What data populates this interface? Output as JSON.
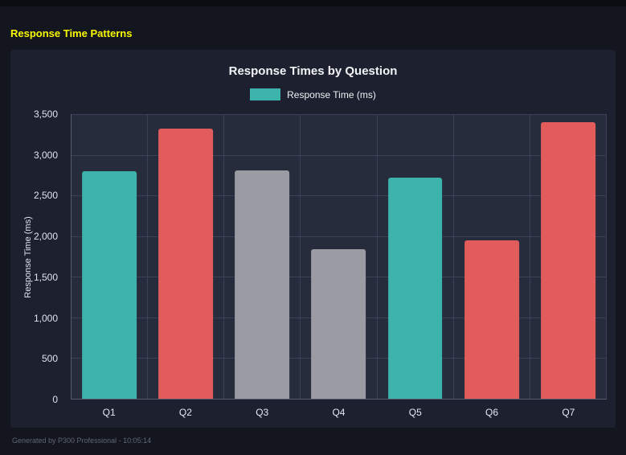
{
  "page": {
    "title": "Response Time Patterns",
    "footer": "Generated by P300 Professional - 10:05:14"
  },
  "chart_data": {
    "type": "bar",
    "title": "Response Times by Question",
    "legend": [
      {
        "label": "Response Time (ms)",
        "color": "#3cb4ac"
      }
    ],
    "categories": [
      "Q1",
      "Q2",
      "Q3",
      "Q4",
      "Q5",
      "Q6",
      "Q7"
    ],
    "values": [
      2800,
      3320,
      2810,
      1840,
      2720,
      1950,
      3400
    ],
    "bar_colors": [
      "#3cb4ac",
      "#e25c5c",
      "#9b9ba3",
      "#9b9ba3",
      "#3cb4ac",
      "#e25c5c",
      "#e25c5c"
    ],
    "xlabel": "",
    "ylabel": "Response Time (ms)",
    "ylim": [
      0,
      3500
    ],
    "ytick_step": 500,
    "ytick_labels": [
      "0",
      "500",
      "1,000",
      "1,500",
      "2,000",
      "2,500",
      "3,000",
      "3,500"
    ],
    "grid": true,
    "legend_position": "top"
  },
  "colors": {
    "page_bg": "#14161f",
    "card_bg": "#1d212f",
    "plot_bg": "#272c3d",
    "gridline": "#3c415a",
    "axis": "#565b6e",
    "accent_teal": "#3cb4ac",
    "accent_red": "#e25c5c",
    "accent_gray": "#9b9ba3",
    "title_yellow": "#f8f800"
  }
}
